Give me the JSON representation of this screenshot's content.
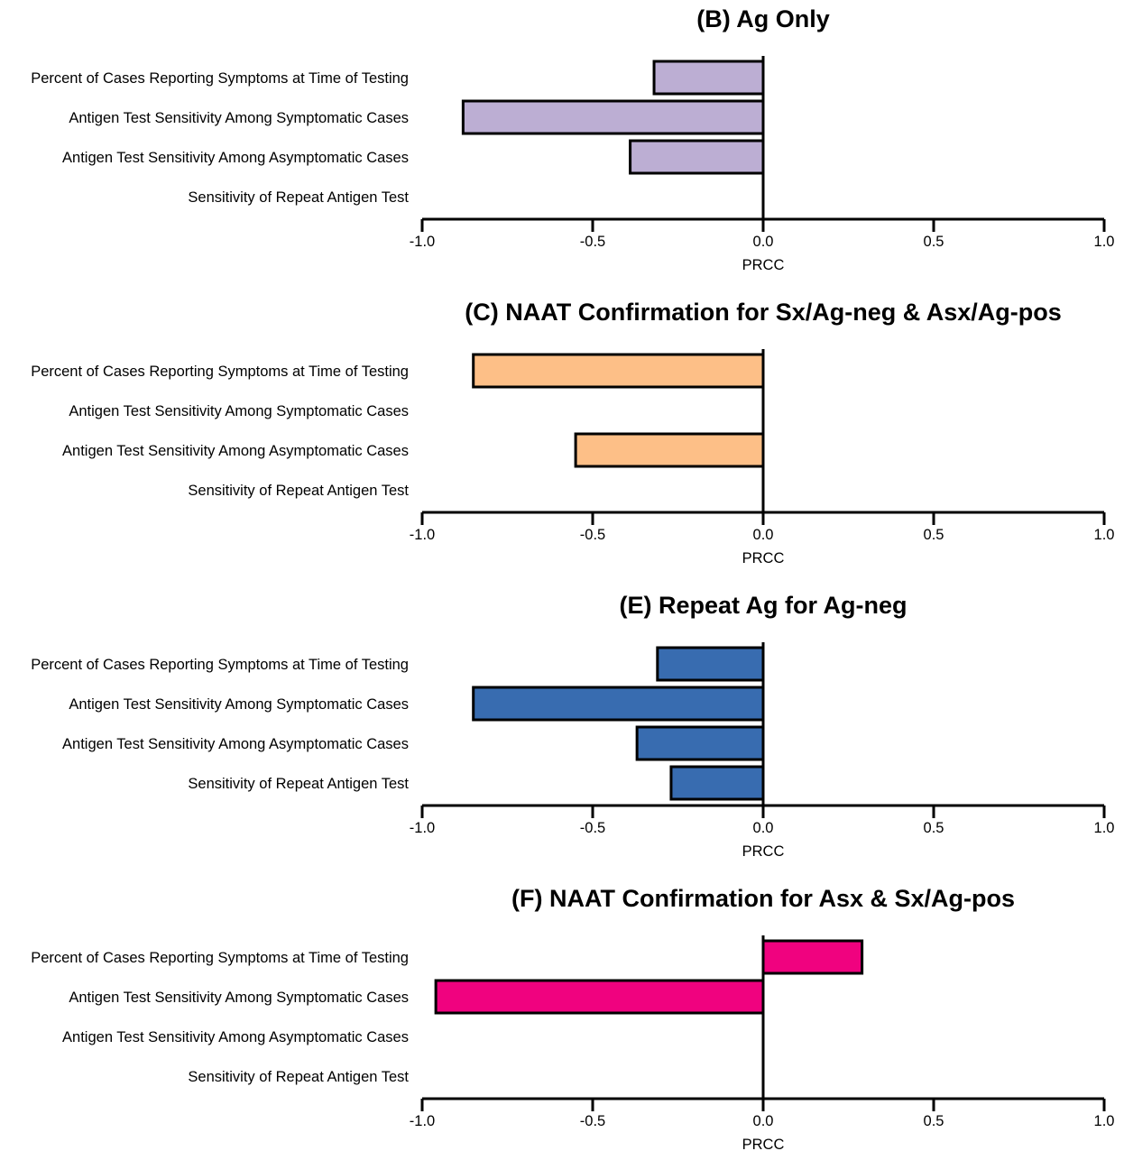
{
  "chart_data": [
    {
      "type": "bar",
      "orientation": "horizontal",
      "title": "(B) Ag Only",
      "xlabel": "PRCC",
      "xlim": [
        -1.0,
        1.0
      ],
      "xticks": [
        "-1.0",
        "-0.5",
        "0.0",
        "0.5",
        "1.0"
      ],
      "categories": [
        "Percent of Cases Reporting Symptoms at Time of Testing",
        "Antigen Test Sensitivity Among Symptomatic Cases",
        "Antigen Test Sensitivity Among Asymptomatic Cases",
        "Sensitivity of Repeat Antigen Test"
      ],
      "values": [
        -0.32,
        -0.88,
        -0.39,
        0.0
      ],
      "color": "#bcaed3"
    },
    {
      "type": "bar",
      "orientation": "horizontal",
      "title": "(C) NAAT Confirmation for Sx/Ag-neg & Asx/Ag-pos",
      "xlabel": "PRCC",
      "xlim": [
        -1.0,
        1.0
      ],
      "xticks": [
        "-1.0",
        "-0.5",
        "0.0",
        "0.5",
        "1.0"
      ],
      "categories": [
        "Percent of Cases Reporting Symptoms at Time of Testing",
        "Antigen Test Sensitivity Among Symptomatic Cases",
        "Antigen Test Sensitivity Among Asymptomatic Cases",
        "Sensitivity of Repeat Antigen Test"
      ],
      "values": [
        -0.85,
        0.0,
        -0.55,
        0.0
      ],
      "color": "#fdbf87"
    },
    {
      "type": "bar",
      "orientation": "horizontal",
      "title": "(E) Repeat Ag for Ag-neg",
      "xlabel": "PRCC",
      "xlim": [
        -1.0,
        1.0
      ],
      "xticks": [
        "-1.0",
        "-0.5",
        "0.0",
        "0.5",
        "1.0"
      ],
      "categories": [
        "Percent of Cases Reporting Symptoms at Time of Testing",
        "Antigen Test Sensitivity Among Symptomatic Cases",
        "Antigen Test Sensitivity Among Asymptomatic Cases",
        "Sensitivity of Repeat Antigen Test"
      ],
      "values": [
        -0.31,
        -0.85,
        -0.37,
        -0.27
      ],
      "color": "#386cb0"
    },
    {
      "type": "bar",
      "orientation": "horizontal",
      "title": "(F) NAAT Confirmation for Asx & Sx/Ag-pos",
      "xlabel": "PRCC",
      "xlim": [
        -1.0,
        1.0
      ],
      "xticks": [
        "-1.0",
        "-0.5",
        "0.0",
        "0.5",
        "1.0"
      ],
      "categories": [
        "Percent of Cases Reporting Symptoms at Time of Testing",
        "Antigen Test Sensitivity Among Symptomatic Cases",
        "Antigen Test Sensitivity Among Asymptomatic Cases",
        "Sensitivity of Repeat Antigen Test"
      ],
      "values": [
        0.29,
        -0.96,
        0.0,
        0.0
      ],
      "color": "#f0027f"
    }
  ]
}
